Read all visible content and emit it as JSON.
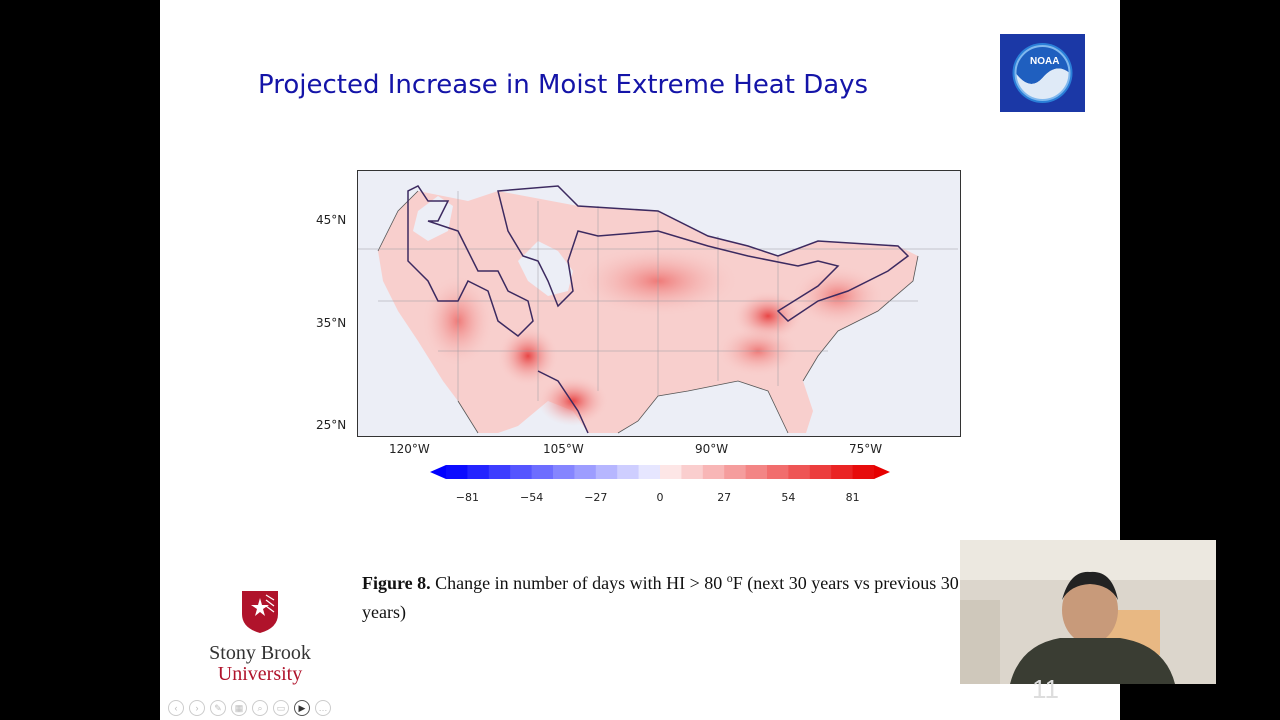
{
  "slide": {
    "title": "Projected Increase in Moist Extreme Heat Days",
    "caption_label": "Figure 8.",
    "caption_text_1": " Change in number of days with HI > 80 ",
    "caption_sup": "o",
    "caption_text_2": "F (next 30 years vs previous 30 years)",
    "logo_noaa": "NOAA",
    "univ_name_1": "Stony Brook",
    "univ_name_2": "University",
    "slide_number": "11"
  },
  "chart_data": {
    "type": "heatmap",
    "title": "",
    "y_ticks": [
      "45°N",
      "35°N",
      "25°N"
    ],
    "x_ticks": [
      "120°W",
      "105°W",
      "90°W",
      "75°W"
    ],
    "colorbar_ticks": [
      "−81",
      "−54",
      "−27",
      "0",
      "27",
      "54",
      "81"
    ],
    "colorbar_range": [
      -90,
      90
    ],
    "colors": {
      "negative": "#0000ff",
      "zero": "#ffffff",
      "positive": "#e60000"
    }
  },
  "toolbar": [
    "prev-icon",
    "next-icon",
    "pen-icon",
    "slides-icon",
    "zoom-icon",
    "subtitle-icon",
    "camera-icon",
    "more-icon"
  ]
}
